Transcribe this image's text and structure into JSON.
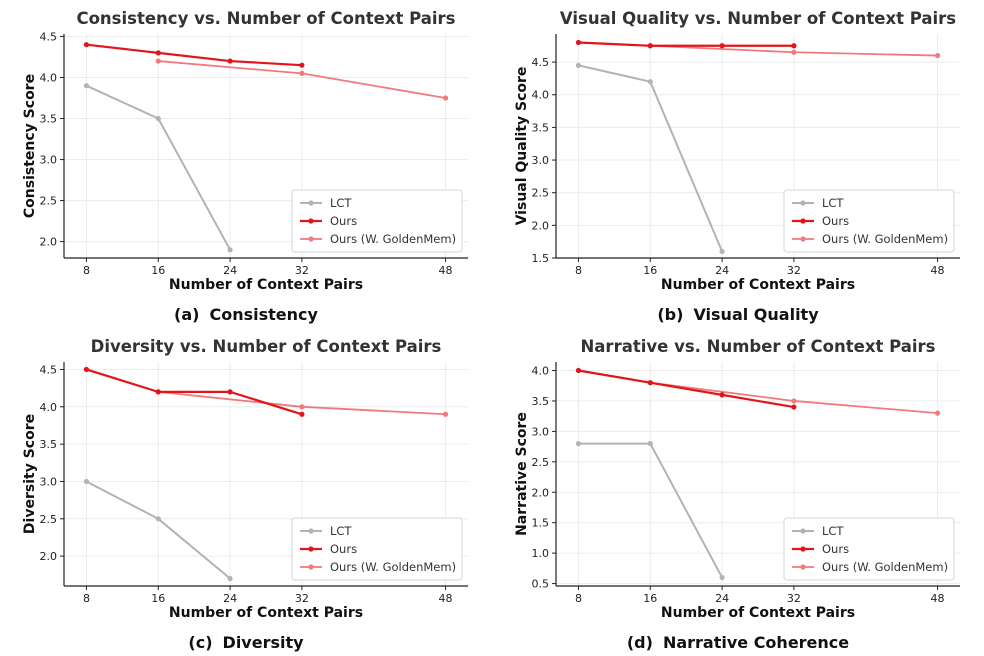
{
  "colors": {
    "lct": "#b3b3b3",
    "ours": "#e0161b",
    "ours_golden": "#f07a7c",
    "grid": "#ececec"
  },
  "captions": [
    {
      "tag": "(a)",
      "text": "Consistency"
    },
    {
      "tag": "(b)",
      "text": "Visual Quality"
    },
    {
      "tag": "(c)",
      "text": "Diversity"
    },
    {
      "tag": "(d)",
      "text": "Narrative Coherence"
    }
  ],
  "chart_data": [
    {
      "type": "line",
      "title": "Consistency vs. Number of Context Pairs",
      "xlabel": "Number of Context Pairs",
      "ylabel": "Consistency Score",
      "xlim": [
        5.5,
        50.5
      ],
      "ylim": [
        1.8,
        4.53
      ],
      "xticks": [
        8,
        16,
        24,
        32,
        48
      ],
      "yticks": [
        2.0,
        2.5,
        3.0,
        3.5,
        4.0,
        4.5
      ],
      "ytick_labels": [
        "2.0",
        "2.5",
        "3.0",
        "3.5",
        "4.0",
        "4.5"
      ],
      "grid": true,
      "legend_position": "lower-right",
      "series": [
        {
          "name": "LCT",
          "x": [
            8,
            16,
            24
          ],
          "y": [
            3.9,
            3.5,
            1.9
          ]
        },
        {
          "name": "Ours",
          "x": [
            8,
            16,
            24,
            32
          ],
          "y": [
            4.4,
            4.3,
            4.2,
            4.15
          ]
        },
        {
          "name": "Ours (W. GoldenMem)",
          "x": [
            16,
            32,
            48
          ],
          "y": [
            4.2,
            4.05,
            3.75
          ]
        }
      ]
    },
    {
      "type": "line",
      "title": "Visual Quality vs. Number of Context Pairs",
      "xlabel": "Number of Context Pairs",
      "ylabel": "Visual Quality Score",
      "xlim": [
        5.5,
        50.5
      ],
      "ylim": [
        1.5,
        4.93
      ],
      "xticks": [
        8,
        16,
        24,
        32,
        48
      ],
      "yticks": [
        1.5,
        2.0,
        2.5,
        3.0,
        3.5,
        4.0,
        4.5
      ],
      "ytick_labels": [
        "1.5",
        "2.0",
        "2.5",
        "3.0",
        "3.5",
        "4.0",
        "4.5"
      ],
      "grid": true,
      "legend_position": "lower-right",
      "series": [
        {
          "name": "LCT",
          "x": [
            8,
            16,
            24
          ],
          "y": [
            4.45,
            4.2,
            1.6
          ]
        },
        {
          "name": "Ours",
          "x": [
            8,
            16,
            24,
            32
          ],
          "y": [
            4.8,
            4.75,
            4.75,
            4.75
          ]
        },
        {
          "name": "Ours (W. GoldenMem)",
          "x": [
            16,
            32,
            48
          ],
          "y": [
            4.75,
            4.65,
            4.6
          ]
        }
      ]
    },
    {
      "type": "line",
      "title": "Diversity vs. Number of Context Pairs",
      "xlabel": "Number of Context Pairs",
      "ylabel": "Diversity Score",
      "xlim": [
        5.5,
        50.5
      ],
      "ylim": [
        1.6,
        4.6
      ],
      "xticks": [
        8,
        16,
        24,
        32,
        48
      ],
      "yticks": [
        2.0,
        2.5,
        3.0,
        3.5,
        4.0,
        4.5
      ],
      "ytick_labels": [
        "2.0",
        "2.5",
        "3.0",
        "3.5",
        "4.0",
        "4.5"
      ],
      "grid": true,
      "legend_position": "lower-right",
      "series": [
        {
          "name": "LCT",
          "x": [
            8,
            16,
            24
          ],
          "y": [
            3.0,
            2.5,
            1.7
          ]
        },
        {
          "name": "Ours",
          "x": [
            8,
            16,
            24,
            32
          ],
          "y": [
            4.5,
            4.2,
            4.2,
            3.9
          ]
        },
        {
          "name": "Ours (W. GoldenMem)",
          "x": [
            16,
            32,
            48
          ],
          "y": [
            4.2,
            4.0,
            3.9
          ]
        }
      ]
    },
    {
      "type": "line",
      "title": "Narrative vs. Number of Context Pairs",
      "xlabel": "Number of Context Pairs",
      "ylabel": "Narrative Score",
      "xlim": [
        5.5,
        50.5
      ],
      "ylim": [
        0.46,
        4.14
      ],
      "xticks": [
        8,
        16,
        24,
        32,
        48
      ],
      "yticks": [
        0.5,
        1.0,
        1.5,
        2.0,
        2.5,
        3.0,
        3.5,
        4.0
      ],
      "ytick_labels": [
        "0.5",
        "1.0",
        "1.5",
        "2.0",
        "2.5",
        "3.0",
        "3.5",
        "4.0"
      ],
      "grid": true,
      "legend_position": "lower-right",
      "series": [
        {
          "name": "LCT",
          "x": [
            8,
            16,
            24
          ],
          "y": [
            2.8,
            2.8,
            0.6
          ]
        },
        {
          "name": "Ours",
          "x": [
            8,
            16,
            24,
            32
          ],
          "y": [
            4.0,
            3.8,
            3.6,
            3.4
          ]
        },
        {
          "name": "Ours (W. GoldenMem)",
          "x": [
            16,
            32,
            48
          ],
          "y": [
            3.8,
            3.5,
            3.3
          ]
        }
      ]
    }
  ]
}
